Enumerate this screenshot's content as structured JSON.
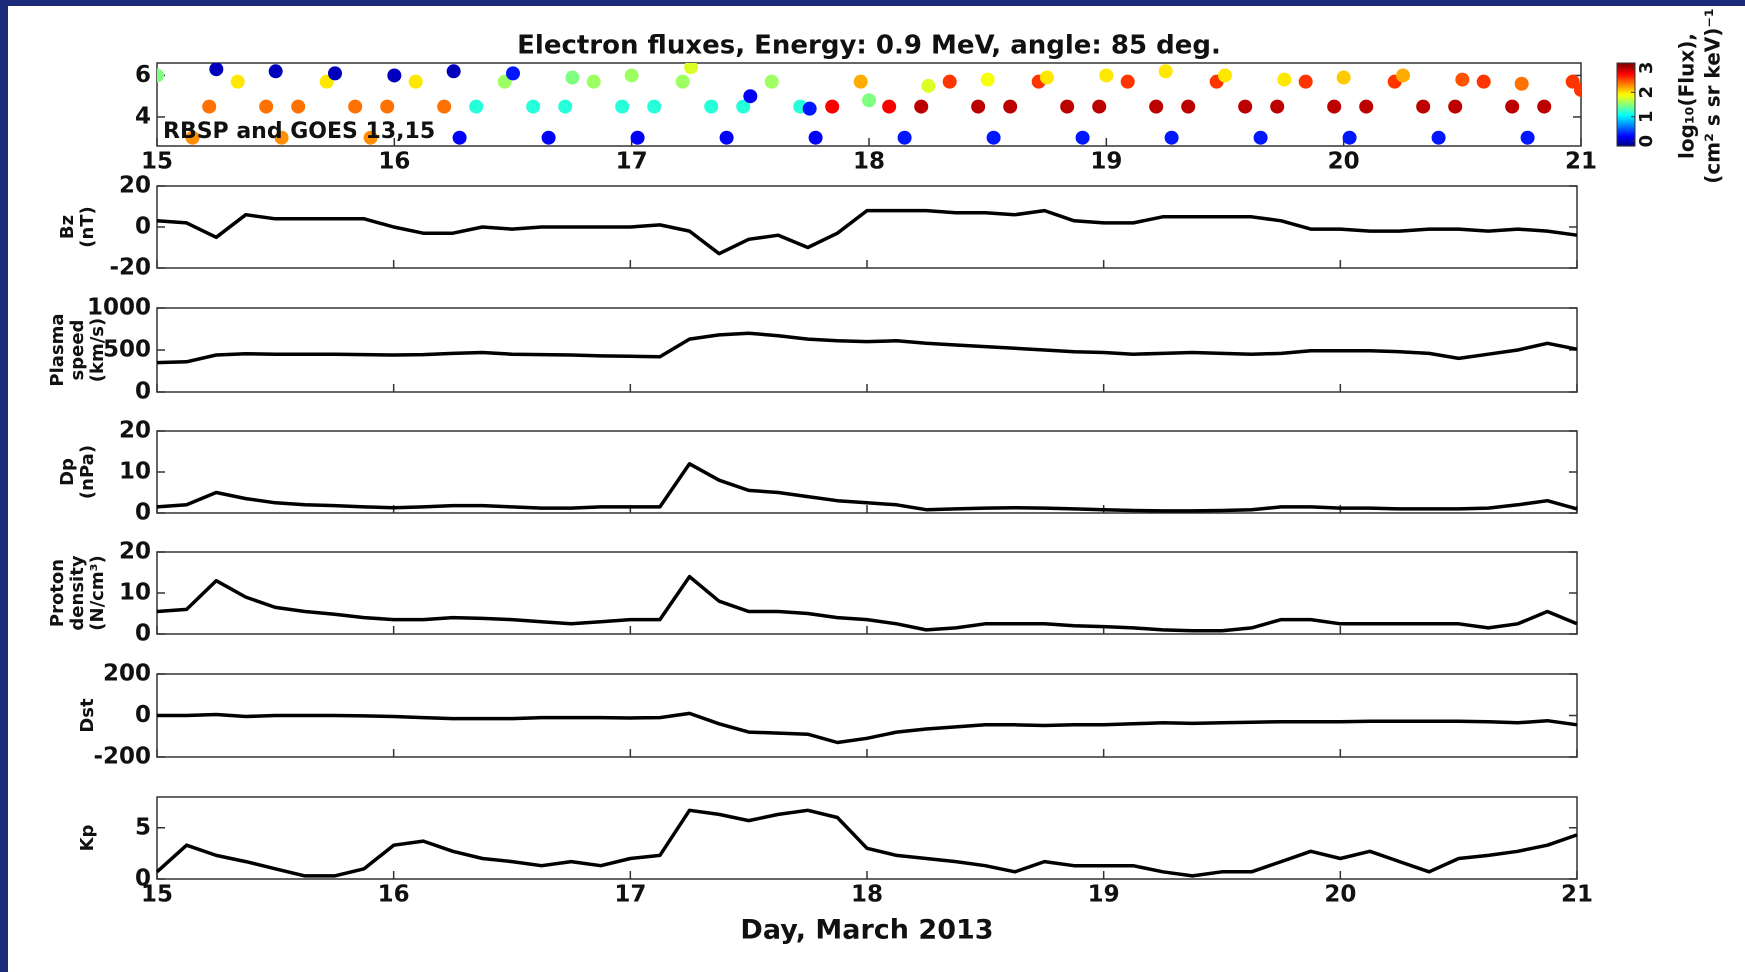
{
  "chart_data": [
    {
      "type": "scatter",
      "title": "Electron fluxes, Energy: 0.9 MeV, angle: 85 deg.",
      "annotation": "RBSP and GOES 13,15",
      "colorbar_label": [
        "log₁₀(Flux),",
        "(cm² s sr keV)⁻¹"
      ],
      "colormap": "jet",
      "clim": [
        -0.2,
        3.2
      ],
      "cticks": [
        0,
        1,
        2,
        3
      ],
      "x": [
        15.15,
        15.22,
        15.34,
        15.46,
        15.525,
        15.595,
        15.715,
        15.835,
        15.9,
        15.97,
        16.09,
        16.21,
        16.275,
        16.345,
        16.465,
        16.585,
        16.65,
        16.72,
        16.84,
        16.96,
        17.025,
        17.095,
        17.215,
        17.335,
        17.4,
        17.47,
        17.59,
        17.71,
        17.775,
        17.845,
        17.965,
        18.085,
        18.15,
        18.22,
        18.34,
        18.46,
        18.525,
        18.595,
        18.715,
        18.835,
        18.9,
        18.97,
        19.09,
        19.21,
        19.275,
        19.345,
        19.465,
        19.585,
        19.65,
        19.72,
        19.84,
        19.96,
        20.025,
        20.095,
        20.215,
        20.335,
        20.4,
        20.47,
        20.59,
        20.71,
        20.775,
        20.845,
        20.965,
        15,
        15.25,
        15.5,
        15.75,
        16,
        16.25,
        16.5,
        16.75,
        17,
        17.25,
        17.5,
        17.75,
        18,
        18.25,
        18.5,
        18.75,
        19,
        19.25,
        19.5,
        19.75,
        20,
        20.25,
        20.5,
        20.75,
        21
      ],
      "y": [
        3,
        4.5,
        5.7,
        4.5,
        3,
        4.5,
        5.7,
        4.5,
        3,
        4.5,
        5.7,
        4.5,
        3,
        4.5,
        5.7,
        4.5,
        3,
        4.5,
        5.7,
        4.5,
        3,
        4.5,
        5.7,
        4.5,
        3,
        4.5,
        5.7,
        4.5,
        3,
        4.5,
        5.7,
        4.5,
        3,
        4.5,
        5.7,
        4.5,
        3,
        4.5,
        5.7,
        4.5,
        3,
        4.5,
        5.7,
        4.5,
        3,
        4.5,
        5.7,
        4.5,
        3,
        4.5,
        5.7,
        4.5,
        3,
        4.5,
        5.7,
        4.5,
        3,
        4.5,
        5.7,
        4.5,
        3,
        4.5,
        5.7,
        6.0,
        6.3,
        6.2,
        6.1,
        6.0,
        6.2,
        6.1,
        5.9,
        6.0,
        6.4,
        5.0,
        4.4,
        4.8,
        5.5,
        5.8,
        5.9,
        6.0,
        6.2,
        6.0,
        5.8,
        5.9,
        6.0,
        5.8,
        5.6,
        5.3
      ],
      "c": [
        2.3,
        2.4,
        2.0,
        2.4,
        2.3,
        2.4,
        2.0,
        2.4,
        2.3,
        2.4,
        2.0,
        2.4,
        0.2,
        1.2,
        1.6,
        1.2,
        0.2,
        1.2,
        1.6,
        1.2,
        0.2,
        1.2,
        1.6,
        1.2,
        0.2,
        1.2,
        1.6,
        1.2,
        0.2,
        2.8,
        2.2,
        2.8,
        0.3,
        3.0,
        2.6,
        3.0,
        0.3,
        3.0,
        2.6,
        3.0,
        0.3,
        3.0,
        2.6,
        3.0,
        0.3,
        3.0,
        2.6,
        3.0,
        0.3,
        3.0,
        2.6,
        3.0,
        0.3,
        3.0,
        2.6,
        3.0,
        0.3,
        3.0,
        2.6,
        3.0,
        0.3,
        3.0,
        2.6,
        1.5,
        0,
        0,
        0,
        0,
        0,
        0.3,
        1.5,
        1.6,
        1.8,
        0.2,
        0.3,
        1.5,
        1.8,
        1.9,
        2.0,
        2.0,
        2.0,
        2.0,
        2.0,
        2.1,
        2.2,
        2.5,
        2.4,
        2.6
      ],
      "xlim": [
        15,
        21
      ],
      "xticks": [
        15,
        16,
        17,
        18,
        19,
        20,
        21
      ],
      "ylim": [
        2.6,
        6.6
      ],
      "yticks": [
        4,
        6
      ]
    },
    {
      "type": "line",
      "ylabel": [
        "Bz",
        "(nT)"
      ],
      "color": "#000000",
      "x": [
        15,
        15.125,
        15.25,
        15.375,
        15.5,
        15.625,
        15.75,
        15.875,
        16,
        16.125,
        16.25,
        16.375,
        16.5,
        16.625,
        16.75,
        16.875,
        17,
        17.125,
        17.25,
        17.375,
        17.5,
        17.625,
        17.75,
        17.875,
        18,
        18.125,
        18.25,
        18.375,
        18.5,
        18.625,
        18.75,
        18.875,
        19,
        19.125,
        19.25,
        19.375,
        19.5,
        19.625,
        19.75,
        19.875,
        20,
        20.125,
        20.25,
        20.375,
        20.5,
        20.625,
        20.75,
        20.875,
        21
      ],
      "values": [
        3,
        2,
        -5,
        6,
        4,
        4,
        4,
        4,
        0,
        -3,
        -3,
        0,
        -1,
        0,
        0,
        0,
        0,
        1,
        -2,
        -13,
        -6,
        -4,
        -10,
        -3,
        8,
        8,
        8,
        7,
        7,
        6,
        8,
        3,
        2,
        2,
        5,
        5,
        5,
        5,
        3,
        -1,
        -1,
        -2,
        -2,
        -1,
        -1,
        -2,
        -1,
        -2,
        -4
      ],
      "xlim": [
        15,
        21
      ],
      "xticks": [
        15,
        16,
        17,
        18,
        19,
        20,
        21
      ],
      "ylim": [
        -20,
        20
      ],
      "yticks": [
        -20,
        0,
        20
      ]
    },
    {
      "type": "line",
      "ylabel": [
        "Plasma",
        "speed",
        "(km/s)"
      ],
      "color": "#000000",
      "x": [
        15,
        15.125,
        15.25,
        15.375,
        15.5,
        15.625,
        15.75,
        15.875,
        16,
        16.125,
        16.25,
        16.375,
        16.5,
        16.625,
        16.75,
        16.875,
        17,
        17.125,
        17.25,
        17.375,
        17.5,
        17.625,
        17.75,
        17.875,
        18,
        18.125,
        18.25,
        18.375,
        18.5,
        18.625,
        18.75,
        18.875,
        19,
        19.125,
        19.25,
        19.375,
        19.5,
        19.625,
        19.75,
        19.875,
        20,
        20.125,
        20.25,
        20.375,
        20.5,
        20.625,
        20.75,
        20.875,
        21
      ],
      "values": [
        350,
        360,
        440,
        455,
        450,
        450,
        450,
        445,
        440,
        445,
        460,
        470,
        450,
        445,
        440,
        430,
        425,
        420,
        630,
        680,
        700,
        670,
        630,
        610,
        600,
        610,
        580,
        560,
        540,
        520,
        500,
        480,
        470,
        450,
        460,
        470,
        460,
        450,
        460,
        490,
        490,
        490,
        480,
        460,
        400,
        450,
        500,
        580,
        510
      ],
      "xlim": [
        15,
        21
      ],
      "xticks": [
        15,
        16,
        17,
        18,
        19,
        20,
        21
      ],
      "ylim": [
        0,
        1000
      ],
      "yticks": [
        0,
        500,
        1000
      ]
    },
    {
      "type": "line",
      "ylabel": [
        "Dp",
        "(nPa)"
      ],
      "color": "#000000",
      "x": [
        15,
        15.125,
        15.25,
        15.375,
        15.5,
        15.625,
        15.75,
        15.875,
        16,
        16.125,
        16.25,
        16.375,
        16.5,
        16.625,
        16.75,
        16.875,
        17,
        17.125,
        17.25,
        17.375,
        17.5,
        17.625,
        17.75,
        17.875,
        18,
        18.125,
        18.25,
        18.375,
        18.5,
        18.625,
        18.75,
        18.875,
        19,
        19.125,
        19.25,
        19.375,
        19.5,
        19.625,
        19.75,
        19.875,
        20,
        20.125,
        20.25,
        20.375,
        20.5,
        20.625,
        20.75,
        20.875,
        21
      ],
      "values": [
        1.5,
        2,
        5,
        3.5,
        2.5,
        2,
        1.8,
        1.5,
        1.3,
        1.5,
        1.8,
        1.8,
        1.5,
        1.2,
        1.2,
        1.5,
        1.5,
        1.5,
        12,
        8,
        5.5,
        5,
        4,
        3,
        2.5,
        2,
        0.8,
        1,
        1.2,
        1.3,
        1.2,
        1,
        0.8,
        0.6,
        0.5,
        0.5,
        0.6,
        0.8,
        1.5,
        1.5,
        1.2,
        1.2,
        1,
        1,
        1,
        1.2,
        2,
        3,
        1
      ],
      "xlim": [
        15,
        21
      ],
      "xticks": [
        15,
        16,
        17,
        18,
        19,
        20,
        21
      ],
      "ylim": [
        0,
        20
      ],
      "yticks": [
        0,
        10,
        20
      ]
    },
    {
      "type": "line",
      "ylabel": [
        "Proton",
        "density",
        "(N/cm³)"
      ],
      "color": "#000000",
      "x": [
        15,
        15.125,
        15.25,
        15.375,
        15.5,
        15.625,
        15.75,
        15.875,
        16,
        16.125,
        16.25,
        16.375,
        16.5,
        16.625,
        16.75,
        16.875,
        17,
        17.125,
        17.25,
        17.375,
        17.5,
        17.625,
        17.75,
        17.875,
        18,
        18.125,
        18.25,
        18.375,
        18.5,
        18.625,
        18.75,
        18.875,
        19,
        19.125,
        19.25,
        19.375,
        19.5,
        19.625,
        19.75,
        19.875,
        20,
        20.125,
        20.25,
        20.375,
        20.5,
        20.625,
        20.75,
        20.875,
        21
      ],
      "values": [
        5.5,
        6,
        13,
        9,
        6.5,
        5.5,
        4.8,
        4,
        3.5,
        3.5,
        4,
        3.8,
        3.5,
        3,
        2.5,
        3,
        3.5,
        3.5,
        14,
        8,
        5.5,
        5.5,
        5,
        4,
        3.5,
        2.5,
        1,
        1.5,
        2.5,
        2.5,
        2.5,
        2,
        1.8,
        1.5,
        1,
        0.8,
        0.8,
        1.5,
        3.5,
        3.5,
        2.5,
        2.5,
        2.5,
        2.5,
        2.5,
        1.5,
        2.5,
        5.5,
        2.5
      ],
      "xlim": [
        15,
        21
      ],
      "xticks": [
        15,
        16,
        17,
        18,
        19,
        20,
        21
      ],
      "ylim": [
        0,
        20
      ],
      "yticks": [
        0,
        10,
        20
      ]
    },
    {
      "type": "line",
      "ylabel": [
        "Dst"
      ],
      "color": "#000000",
      "x": [
        15,
        15.125,
        15.25,
        15.375,
        15.5,
        15.625,
        15.75,
        15.875,
        16,
        16.125,
        16.25,
        16.375,
        16.5,
        16.625,
        16.75,
        16.875,
        17,
        17.125,
        17.25,
        17.375,
        17.5,
        17.625,
        17.75,
        17.875,
        18,
        18.125,
        18.25,
        18.375,
        18.5,
        18.625,
        18.75,
        18.875,
        19,
        19.125,
        19.25,
        19.375,
        19.5,
        19.625,
        19.75,
        19.875,
        20,
        20.125,
        20.25,
        20.375,
        20.5,
        20.625,
        20.75,
        20.875,
        21
      ],
      "values": [
        0,
        0,
        5,
        -5,
        0,
        0,
        0,
        -2,
        -5,
        -10,
        -15,
        -15,
        -15,
        -10,
        -10,
        -10,
        -12,
        -10,
        10,
        -40,
        -80,
        -85,
        -90,
        -130,
        -110,
        -80,
        -65,
        -55,
        -45,
        -45,
        -48,
        -45,
        -45,
        -40,
        -35,
        -38,
        -35,
        -33,
        -30,
        -30,
        -30,
        -28,
        -28,
        -28,
        -28,
        -30,
        -35,
        -25,
        -45
      ],
      "xlim": [
        15,
        21
      ],
      "xticks": [
        15,
        16,
        17,
        18,
        19,
        20,
        21
      ],
      "ylim": [
        -200,
        200
      ],
      "yticks": [
        -200,
        0,
        200
      ]
    },
    {
      "type": "line",
      "ylabel": [
        "Kp"
      ],
      "xlabel": "Day, March 2013",
      "color": "#000000",
      "x": [
        15,
        15.125,
        15.25,
        15.375,
        15.5,
        15.625,
        15.75,
        15.875,
        16,
        16.125,
        16.25,
        16.375,
        16.5,
        16.625,
        16.75,
        16.875,
        17,
        17.125,
        17.25,
        17.375,
        17.5,
        17.625,
        17.75,
        17.875,
        18,
        18.125,
        18.25,
        18.375,
        18.5,
        18.625,
        18.75,
        18.875,
        19,
        19.125,
        19.25,
        19.375,
        19.5,
        19.625,
        19.75,
        19.875,
        20,
        20.125,
        20.25,
        20.375,
        20.5,
        20.625,
        20.75,
        20.875,
        21
      ],
      "values": [
        0.7,
        3.3,
        2.3,
        1.7,
        1,
        0.3,
        0.3,
        1,
        3.3,
        3.7,
        2.7,
        2,
        1.7,
        1.3,
        1.7,
        1.3,
        2,
        2.3,
        6.7,
        6.3,
        5.7,
        6.3,
        6.7,
        6,
        3,
        2.3,
        2,
        1.7,
        1.3,
        0.7,
        1.7,
        1.3,
        1.3,
        1.3,
        0.7,
        0.3,
        0.7,
        0.7,
        1.7,
        2.7,
        2,
        2.7,
        1.7,
        0.7,
        2,
        2.3,
        2.7,
        3.3,
        4.3
      ],
      "xlim": [
        15,
        21
      ],
      "xticks": [
        15,
        16,
        17,
        18,
        19,
        20,
        21
      ],
      "ylim": [
        0,
        8
      ],
      "yticks": [
        0,
        5
      ]
    }
  ]
}
